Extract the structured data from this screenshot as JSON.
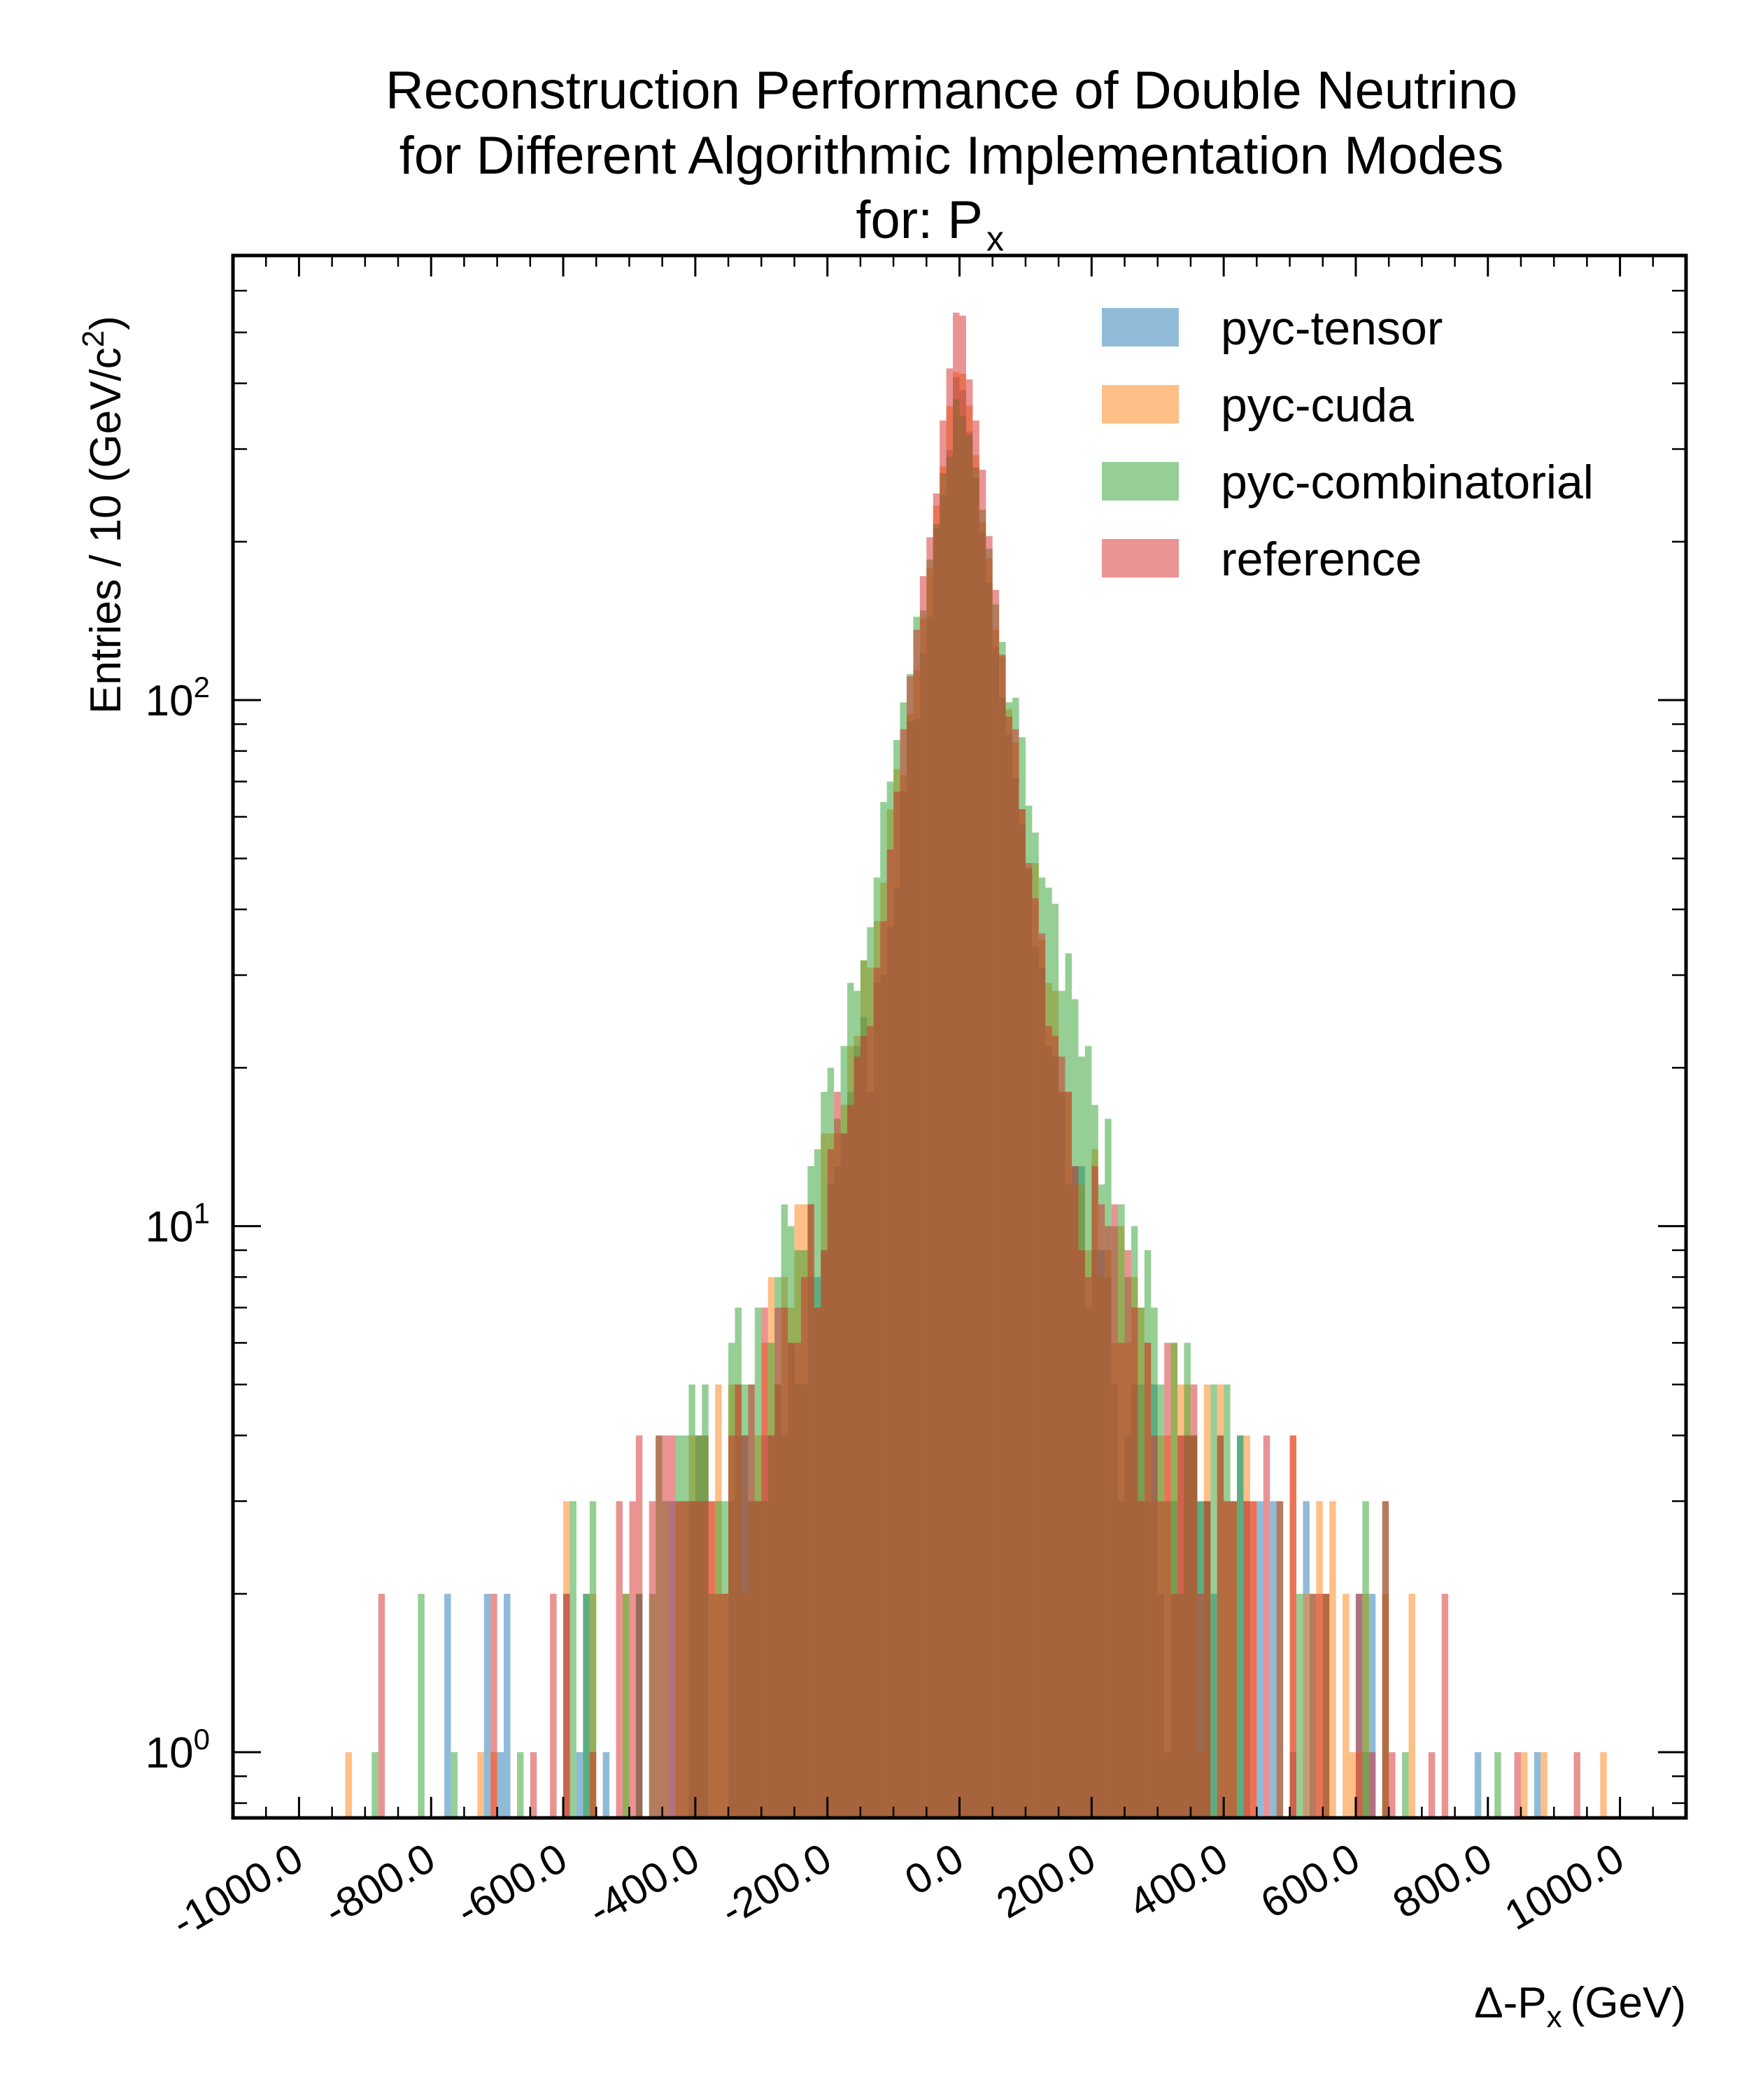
{
  "chart_data": {
    "type": "histogram",
    "title_lines": [
      "Reconstruction Performance of Double Neutrino",
      "for Different Algorithmic Implementation Modes",
      "for: P"
    ],
    "title_subscript": "x",
    "xlabel_main": "Δ-P",
    "xlabel_sub": "x",
    "xlabel_unit": "(GeV)",
    "ylabel_main": "Entries  / 10 (GeV/c",
    "ylabel_sup": "2",
    "ylabel_end": ")",
    "y_scale": "log",
    "ylim": [
      0.75,
      700
    ],
    "xlim": [
      -1100,
      1100
    ],
    "bin_width": 10,
    "grid": false,
    "legend_position": "top-right",
    "x_ticks": [
      -1000,
      -800,
      -600,
      -400,
      -200,
      0,
      200,
      400,
      600,
      800,
      1000
    ],
    "x_tick_labels": [
      "-1000.0",
      "-800.0",
      "-600.0",
      "-400.0",
      "-200.0",
      "0.0",
      "200.0",
      "400.0",
      "600.0",
      "800.0",
      "1000.0"
    ],
    "y_ticks": [
      {
        "value": 1,
        "base": "10",
        "exp": "0"
      },
      {
        "value": 10,
        "base": "10",
        "exp": "1"
      },
      {
        "value": 100,
        "base": "10",
        "exp": "2"
      }
    ],
    "series": [
      {
        "name": "pyc-tensor",
        "color": "#1f77b4",
        "opacity": 0.5,
        "peak": 430,
        "center": 0,
        "core_width": 42,
        "tail_width": 210,
        "tail_fraction": 0.03
      },
      {
        "name": "pyc-cuda",
        "color": "#ff7f0e",
        "opacity": 0.5,
        "peak": 460,
        "center": 0,
        "core_width": 45,
        "tail_width": 220,
        "tail_fraction": 0.035
      },
      {
        "name": "pyc-combinatorial",
        "color": "#2ca02c",
        "opacity": 0.5,
        "peak": 380,
        "center": 0,
        "core_width": 55,
        "tail_width": 200,
        "tail_fraction": 0.05
      },
      {
        "name": "reference",
        "color": "#d62728",
        "opacity": 0.5,
        "peak": 600,
        "center": 0,
        "core_width": 40,
        "tail_width": 210,
        "tail_fraction": 0.03
      }
    ]
  }
}
